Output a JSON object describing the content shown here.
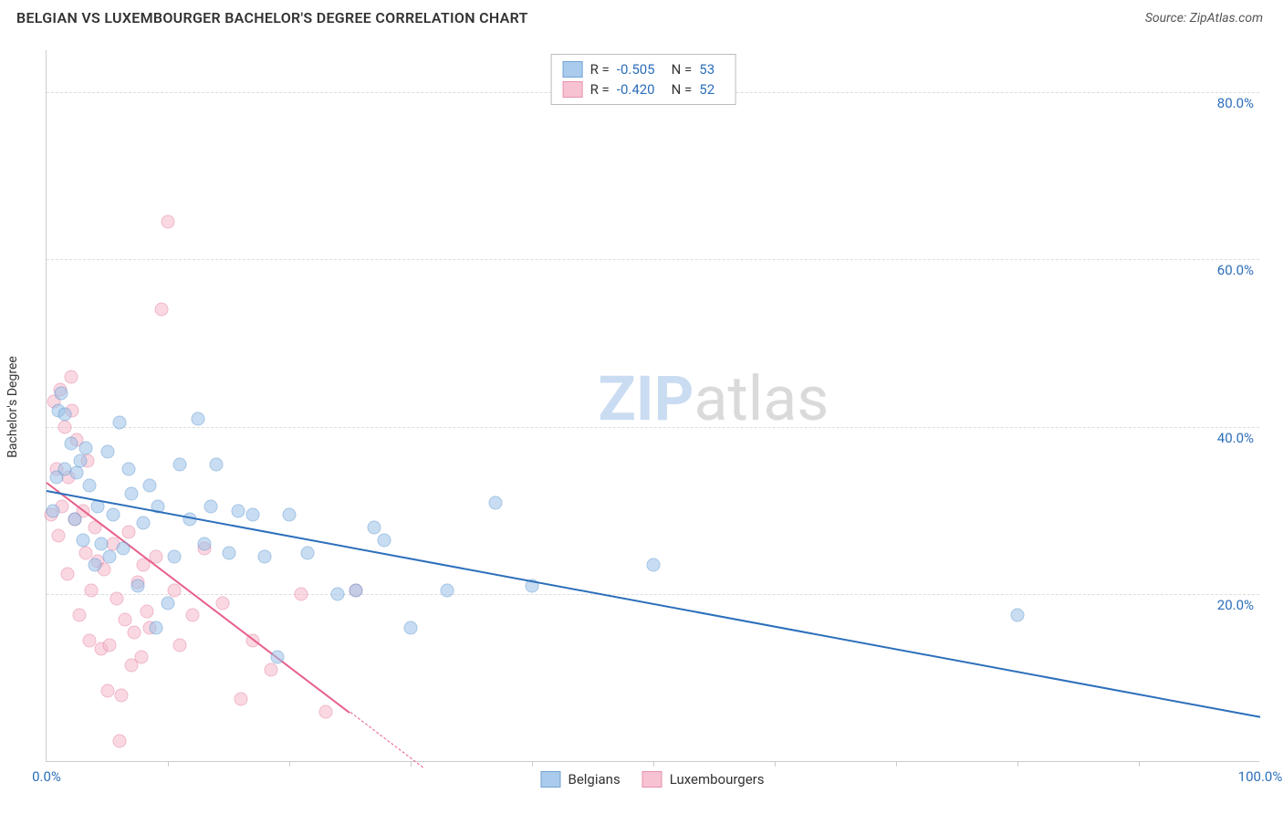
{
  "header": {
    "title": "BELGIAN VS LUXEMBOURGER BACHELOR'S DEGREE CORRELATION CHART",
    "source": "Source: ZipAtlas.com"
  },
  "chart": {
    "type": "scatter",
    "ylabel": "Bachelor's Degree",
    "xlim": [
      0,
      100
    ],
    "ylim": [
      0,
      85
    ],
    "yticks": [
      20,
      40,
      60,
      80
    ],
    "ytick_labels": [
      "20.0%",
      "40.0%",
      "60.0%",
      "80.0%"
    ],
    "xticks_minor": [
      10,
      20,
      30,
      40,
      50,
      60,
      70,
      80,
      90
    ],
    "xtick_labels": {
      "0": "0.0%",
      "100": "100.0%"
    },
    "grid_color": "#dddddd",
    "axis_color": "#cccccc",
    "background_color": "#ffffff",
    "watermark": {
      "zip": "ZIP",
      "atlas": "atlas",
      "zip_color": "#c9dcf2",
      "atlas_color": "#dadada"
    },
    "series": {
      "belgians": {
        "label": "Belgians",
        "fill": "#9cc3e8",
        "stroke": "#5a94cf",
        "fill_opacity": 0.55,
        "trend_color": "#2c6fbb",
        "trend": {
          "x1": 0,
          "y1": 32.5,
          "x2": 100,
          "y2": 5.5
        },
        "R": "-0.505",
        "N": "53",
        "points": [
          [
            0.5,
            30
          ],
          [
            0.8,
            34
          ],
          [
            1,
            42
          ],
          [
            1.2,
            44
          ],
          [
            1.5,
            35
          ],
          [
            1.5,
            41.5
          ],
          [
            2,
            38
          ],
          [
            2.3,
            29
          ],
          [
            2.5,
            34.5
          ],
          [
            2.8,
            36
          ],
          [
            3,
            26.5
          ],
          [
            3.2,
            37.5
          ],
          [
            3.5,
            33
          ],
          [
            4,
            23.5
          ],
          [
            4.2,
            30.5
          ],
          [
            4.5,
            26
          ],
          [
            5,
            37
          ],
          [
            5.2,
            24.5
          ],
          [
            5.5,
            29.5
          ],
          [
            6,
            40.5
          ],
          [
            6.3,
            25.5
          ],
          [
            6.8,
            35
          ],
          [
            7,
            32
          ],
          [
            7.5,
            21
          ],
          [
            8,
            28.5
          ],
          [
            8.5,
            33
          ],
          [
            9,
            16
          ],
          [
            9.2,
            30.5
          ],
          [
            10,
            19
          ],
          [
            10.5,
            24.5
          ],
          [
            11,
            35.5
          ],
          [
            11.8,
            29
          ],
          [
            12.5,
            41
          ],
          [
            13,
            26
          ],
          [
            13.5,
            30.5
          ],
          [
            14,
            35.5
          ],
          [
            15,
            25
          ],
          [
            15.8,
            30
          ],
          [
            17,
            29.5
          ],
          [
            18,
            24.5
          ],
          [
            19,
            12.5
          ],
          [
            20,
            29.5
          ],
          [
            21.5,
            25
          ],
          [
            24,
            20
          ],
          [
            25.5,
            20.5
          ],
          [
            27,
            28
          ],
          [
            27.8,
            26.5
          ],
          [
            30,
            16
          ],
          [
            33,
            20.5
          ],
          [
            37,
            31
          ],
          [
            40,
            21
          ],
          [
            50,
            23.5
          ],
          [
            80,
            17.5
          ]
        ]
      },
      "luxembourgers": {
        "label": "Luxembourgers",
        "fill": "#f6b9cb",
        "stroke": "#e37fa0",
        "fill_opacity": 0.55,
        "trend_color": "#e85f8a",
        "trend": {
          "x1": 0,
          "y1": 33.5,
          "x2": 25,
          "y2": 6
        },
        "trend_dash": {
          "x1": 25,
          "y1": 6,
          "x2": 31,
          "y2": -0.6
        },
        "R": "-0.420",
        "N": "52",
        "points": [
          [
            0.4,
            29.5
          ],
          [
            0.6,
            43
          ],
          [
            0.8,
            35
          ],
          [
            1,
            27
          ],
          [
            1.1,
            44.5
          ],
          [
            1.3,
            30.5
          ],
          [
            1.5,
            40
          ],
          [
            1.7,
            22.5
          ],
          [
            1.8,
            34
          ],
          [
            2,
            46
          ],
          [
            2.1,
            42
          ],
          [
            2.3,
            29
          ],
          [
            2.5,
            38.5
          ],
          [
            2.7,
            17.5
          ],
          [
            3,
            30
          ],
          [
            3.2,
            25
          ],
          [
            3.4,
            36
          ],
          [
            3.5,
            14.5
          ],
          [
            3.7,
            20.5
          ],
          [
            4,
            28
          ],
          [
            4.2,
            24
          ],
          [
            4.5,
            13.5
          ],
          [
            4.7,
            23
          ],
          [
            5,
            8.5
          ],
          [
            5.2,
            14
          ],
          [
            5.5,
            26
          ],
          [
            5.8,
            19.5
          ],
          [
            6,
            2.5
          ],
          [
            6.2,
            8
          ],
          [
            6.5,
            17
          ],
          [
            6.8,
            27.5
          ],
          [
            7,
            11.5
          ],
          [
            7.2,
            15.5
          ],
          [
            7.5,
            21.5
          ],
          [
            7.8,
            12.5
          ],
          [
            8,
            23.5
          ],
          [
            8.3,
            18
          ],
          [
            8.5,
            16
          ],
          [
            9,
            24.5
          ],
          [
            9.5,
            54
          ],
          [
            10,
            64.5
          ],
          [
            10.5,
            20.5
          ],
          [
            11,
            14
          ],
          [
            12,
            17.5
          ],
          [
            13,
            25.5
          ],
          [
            14.5,
            19
          ],
          [
            16,
            7.5
          ],
          [
            17,
            14.5
          ],
          [
            18.5,
            11
          ],
          [
            21,
            20
          ],
          [
            23,
            6
          ],
          [
            25.5,
            20.5
          ]
        ]
      }
    },
    "legend": {
      "items": [
        {
          "key": "belgians",
          "label": "Belgians"
        },
        {
          "key": "luxembourgers",
          "label": "Luxembourgers"
        }
      ]
    }
  }
}
